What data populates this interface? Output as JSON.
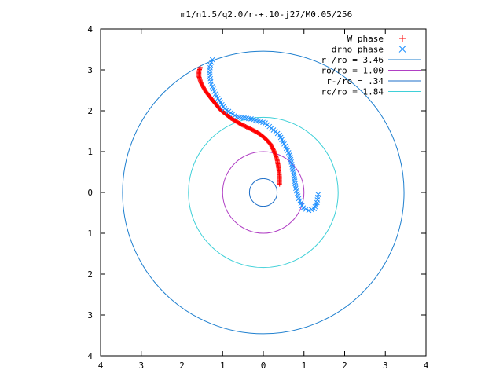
{
  "chart_data": {
    "type": "scatter",
    "title": "m1/n1.5/q2.0/r-+.10-j27/M0.05/256",
    "xlabel": "",
    "ylabel": "",
    "xlim": [
      -4,
      4
    ],
    "ylim": [
      -4,
      4
    ],
    "xtick_values": [
      -4,
      -3,
      -2,
      -1,
      0,
      1,
      2,
      3,
      4
    ],
    "xtick_labels": [
      "4",
      "3",
      "2",
      "1",
      "0",
      "1",
      "2",
      "3",
      "4"
    ],
    "ytick_values": [
      4,
      3,
      2,
      1,
      0,
      -1,
      -2,
      -3,
      -4
    ],
    "ytick_labels": [
      "4",
      "3",
      "2",
      "1",
      "0",
      "1",
      "2",
      "3",
      "4"
    ],
    "grid": false,
    "legend_position": "top-right",
    "series": [
      {
        "name": "W phase",
        "kind": "points",
        "marker": "plus",
        "color": "#ff0000",
        "x": [
          0.4,
          0.4,
          0.38,
          0.34,
          0.27,
          0.18,
          0.05,
          -0.1,
          -0.3,
          -0.55,
          -0.8,
          -1.05,
          -1.25,
          -1.42,
          -1.53,
          -1.58,
          -1.58,
          -1.55
        ],
        "y": [
          0.2,
          0.38,
          0.58,
          0.8,
          1.0,
          1.18,
          1.32,
          1.44,
          1.55,
          1.67,
          1.82,
          2.02,
          2.26,
          2.48,
          2.68,
          2.84,
          2.96,
          3.06
        ]
      },
      {
        "name": "drho phase",
        "kind": "points",
        "marker": "x",
        "color": "#1e90ff",
        "x": [
          1.35,
          1.32,
          1.25,
          1.12,
          0.98,
          0.87,
          0.8,
          0.75,
          0.65,
          0.4,
          0.05,
          -0.3,
          -0.65,
          -0.95,
          -1.15,
          -1.28,
          -1.32,
          -1.3,
          -1.25
        ],
        "y": [
          -0.05,
          -0.25,
          -0.4,
          -0.44,
          -0.38,
          -0.15,
          0.1,
          0.45,
          0.92,
          1.4,
          1.7,
          1.8,
          1.85,
          2.05,
          2.35,
          2.65,
          2.92,
          3.12,
          3.25
        ]
      },
      {
        "name": "r+/ro = 3.46",
        "kind": "circle",
        "radius": 3.46,
        "color": "#1e7fcf"
      },
      {
        "name": "ro/ro = 1.00",
        "kind": "circle",
        "radius": 1.0,
        "color": "#b03fc4"
      },
      {
        "name": "r-/ro = .34",
        "kind": "circle",
        "radius": 0.34,
        "color": "#1e6fc8"
      },
      {
        "name": "rc/ro = 1.84",
        "kind": "circle",
        "radius": 1.84,
        "color": "#3fd0d8"
      }
    ]
  }
}
